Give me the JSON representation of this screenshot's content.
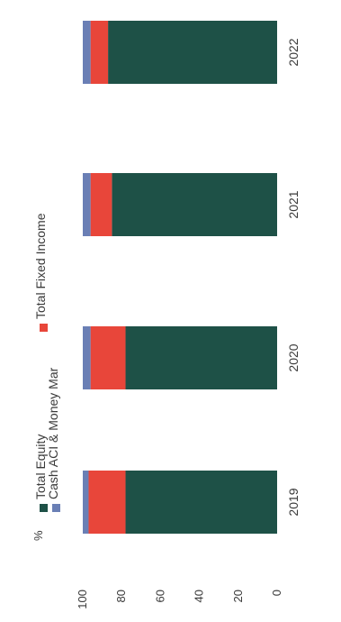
{
  "chart_data": {
    "type": "bar",
    "stacked": true,
    "orientation": "vertical",
    "categories": [
      "2019",
      "2020",
      "2021",
      "2022"
    ],
    "series": [
      {
        "name": "Total Equity",
        "color": "#1e5147",
        "values": [
          78,
          78,
          85,
          87
        ]
      },
      {
        "name": "Total Fixed Income",
        "color": "#e8463a",
        "values": [
          19,
          18,
          11,
          9
        ]
      },
      {
        "name": "Cash ACI & Money Mar",
        "color": "#6a7fb5",
        "values": [
          3,
          4,
          4,
          4
        ]
      }
    ],
    "ylabel": "%",
    "ylim": [
      0,
      100
    ],
    "yticks": [
      "100",
      "80",
      "60",
      "40",
      "20",
      "0"
    ],
    "grid": false,
    "legend": [
      {
        "name": "Total Equity",
        "color": "#1e5147"
      },
      {
        "name": "Cash ACI & Money Mar",
        "color": "#6a7fb5"
      },
      {
        "name": "Total Fixed Income",
        "color": "#e8463a"
      }
    ],
    "legend_position": "top"
  }
}
